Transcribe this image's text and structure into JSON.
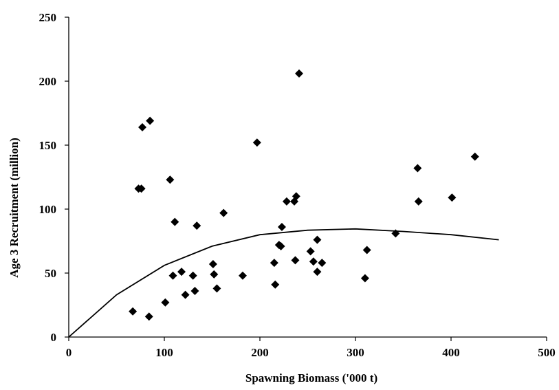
{
  "chart_data": {
    "type": "scatter",
    "xlabel": "Spawning Biomass ('000 t)",
    "ylabel": "Age 3 Recruitment (million)",
    "xlim": [
      0,
      500
    ],
    "ylim": [
      0,
      250
    ],
    "x_ticks": [
      "0",
      "100",
      "200",
      "300",
      "400",
      "500"
    ],
    "y_ticks": [
      "0",
      "50",
      "100",
      "150",
      "200",
      "250"
    ],
    "grid": false,
    "legend": "none",
    "marker_color": "#000000",
    "line_color": "#000000",
    "series": [
      {
        "kind": "scatter",
        "marker": "diamond",
        "points": [
          [
            67,
            20
          ],
          [
            73,
            116
          ],
          [
            76,
            116
          ],
          [
            77,
            164
          ],
          [
            84,
            16
          ],
          [
            85,
            169
          ],
          [
            101,
            27
          ],
          [
            106,
            123
          ],
          [
            109,
            48
          ],
          [
            111,
            90
          ],
          [
            118,
            51
          ],
          [
            122,
            33
          ],
          [
            130,
            48
          ],
          [
            132,
            36
          ],
          [
            134,
            87
          ],
          [
            151,
            57
          ],
          [
            152,
            49
          ],
          [
            155,
            38
          ],
          [
            162,
            97
          ],
          [
            182,
            48
          ],
          [
            197,
            152
          ],
          [
            215,
            58
          ],
          [
            216,
            41
          ],
          [
            220,
            72
          ],
          [
            222,
            71
          ],
          [
            223,
            86
          ],
          [
            228,
            106
          ],
          [
            236,
            106
          ],
          [
            237,
            60
          ],
          [
            238,
            110
          ],
          [
            241,
            206
          ],
          [
            253,
            67
          ],
          [
            256,
            59
          ],
          [
            260,
            76
          ],
          [
            260,
            51
          ],
          [
            265,
            58
          ],
          [
            310,
            46
          ],
          [
            312,
            68
          ],
          [
            342,
            81
          ],
          [
            365,
            132
          ],
          [
            366,
            106
          ],
          [
            401,
            109
          ],
          [
            425,
            141
          ]
        ]
      },
      {
        "kind": "line",
        "points": [
          [
            0,
            0
          ],
          [
            50,
            33
          ],
          [
            100,
            56
          ],
          [
            150,
            71
          ],
          [
            200,
            80
          ],
          [
            250,
            83.5
          ],
          [
            300,
            84.5
          ],
          [
            350,
            82.5
          ],
          [
            400,
            80
          ],
          [
            450,
            76
          ]
        ]
      }
    ]
  }
}
